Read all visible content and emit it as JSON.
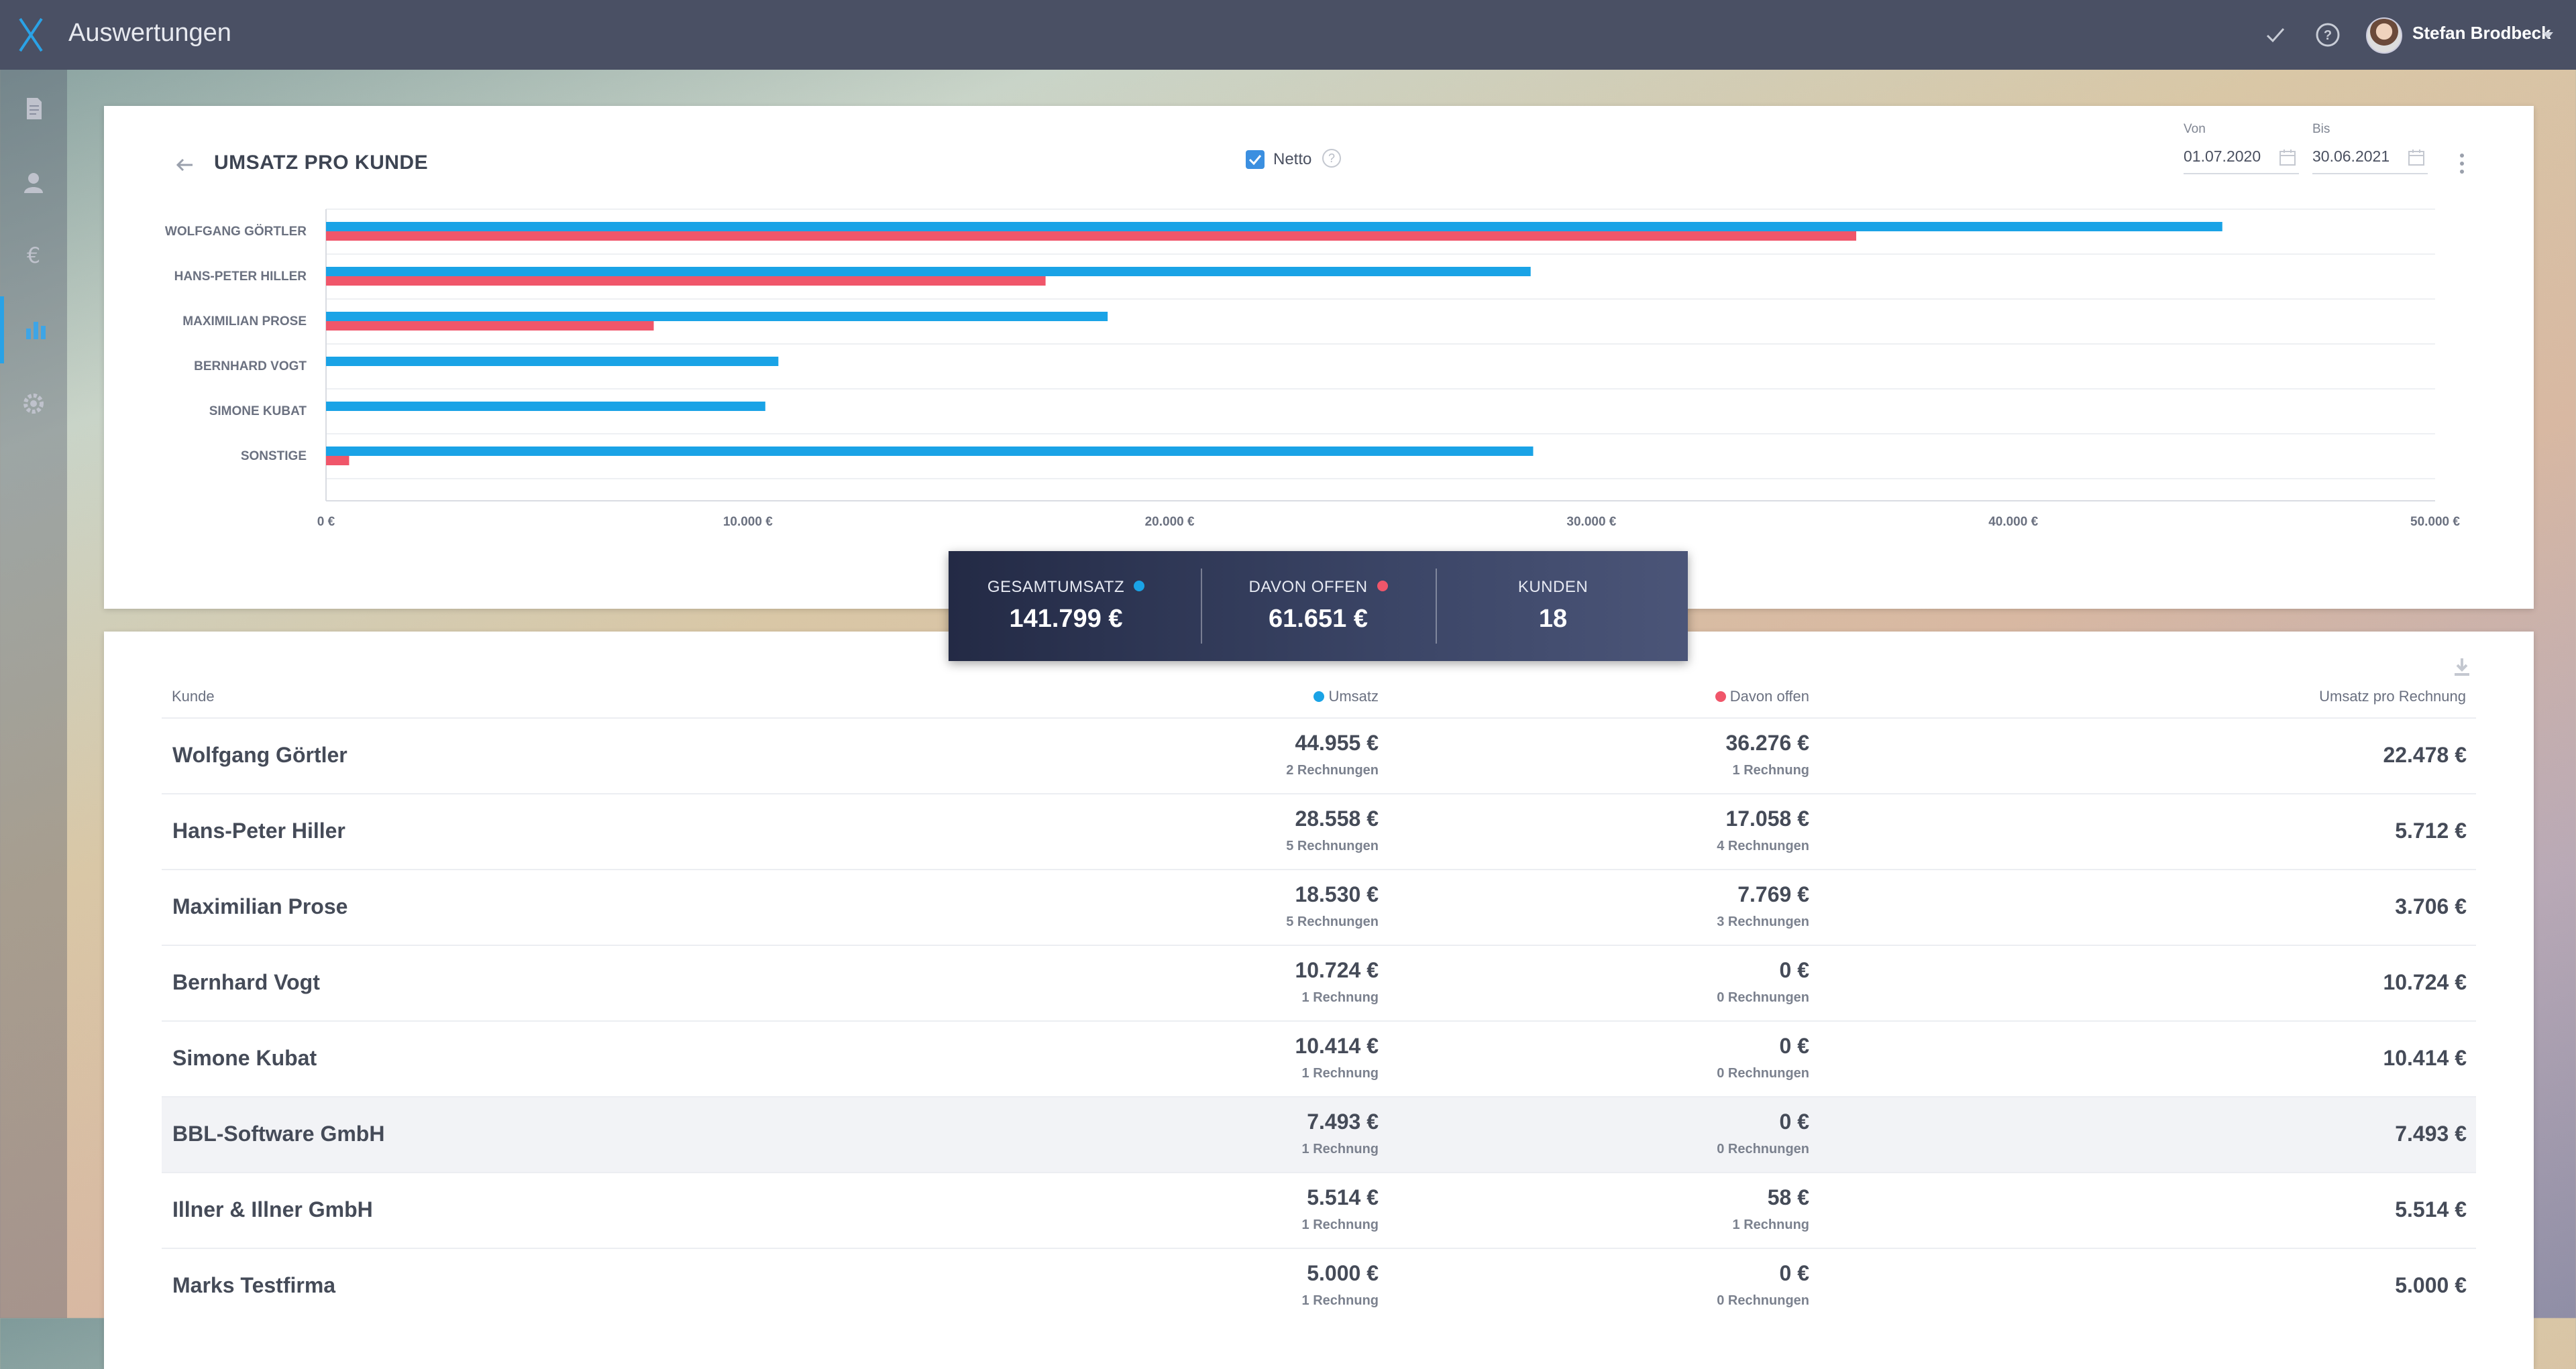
{
  "app": {
    "title": "Auswertungen",
    "user_name": "Stefan Brodbeck"
  },
  "sidebar": {
    "items": [
      {
        "icon": "document-icon"
      },
      {
        "icon": "contacts-icon"
      },
      {
        "icon": "euro-icon"
      },
      {
        "icon": "bar-chart-icon",
        "active": true
      },
      {
        "icon": "gear-icon"
      }
    ]
  },
  "chart_card": {
    "title": "UMSATZ PRO KUNDE",
    "netto_label": "Netto",
    "netto_checked": true,
    "from_label": "Von",
    "from_value": "01.07.2020",
    "to_label": "Bis",
    "to_value": "30.06.2021"
  },
  "colors": {
    "umsatz": "#1aa3e6",
    "offen": "#f0566a",
    "accent": "#2aa2e6"
  },
  "chart_data": {
    "type": "bar",
    "orientation": "horizontal",
    "categories": [
      "WOLFGANG GÖRTLER",
      "HANS-PETER HILLER",
      "MAXIMILIAN PROSE",
      "BERNHARD VOGT",
      "SIMONE KUBAT",
      "SONSTIGE"
    ],
    "series": [
      {
        "name": "Umsatz",
        "color": "#1aa3e6",
        "values": [
          44955,
          28558,
          18530,
          10724,
          10414,
          28618
        ]
      },
      {
        "name": "Davon offen",
        "color": "#f0566a",
        "values": [
          36276,
          17058,
          7769,
          0,
          0,
          548
        ]
      }
    ],
    "xlim": [
      0,
      50000
    ],
    "xticks": [
      "0 €",
      "10.000 €",
      "20.000 €",
      "30.000 €",
      "40.000 €",
      "50.000 €"
    ],
    "grid": true
  },
  "summary": [
    {
      "label": "GESAMTUMSATZ",
      "value": "141.799 €",
      "dot": "#1aa3e6"
    },
    {
      "label": "DAVON OFFEN",
      "value": "61.651 €",
      "dot": "#f0566a"
    },
    {
      "label": "KUNDEN",
      "value": "18"
    }
  ],
  "table": {
    "headers": {
      "kunde": "Kunde",
      "umsatz": "Umsatz",
      "offen": "Davon offen",
      "pro_rechnung": "Umsatz pro Rechnung"
    },
    "rows": [
      {
        "name": "Wolfgang Görtler",
        "umsatz": "44.955 €",
        "umsatz_sub": "2 Rechnungen",
        "offen": "36.276 €",
        "offen_sub": "1 Rechnung",
        "pro": "22.478 €"
      },
      {
        "name": "Hans-Peter Hiller",
        "umsatz": "28.558 €",
        "umsatz_sub": "5 Rechnungen",
        "offen": "17.058 €",
        "offen_sub": "4 Rechnungen",
        "pro": "5.712 €"
      },
      {
        "name": "Maximilian Prose",
        "umsatz": "18.530 €",
        "umsatz_sub": "5 Rechnungen",
        "offen": "7.769 €",
        "offen_sub": "3 Rechnungen",
        "pro": "3.706 €"
      },
      {
        "name": "Bernhard Vogt",
        "umsatz": "10.724 €",
        "umsatz_sub": "1 Rechnung",
        "offen": "0 €",
        "offen_sub": "0 Rechnungen",
        "pro": "10.724 €"
      },
      {
        "name": "Simone Kubat",
        "umsatz": "10.414 €",
        "umsatz_sub": "1 Rechnung",
        "offen": "0 €",
        "offen_sub": "0 Rechnungen",
        "pro": "10.414 €"
      },
      {
        "name": "BBL-Software GmbH",
        "umsatz": "7.493 €",
        "umsatz_sub": "1 Rechnung",
        "offen": "0 €",
        "offen_sub": "0 Rechnungen",
        "pro": "7.493 €",
        "highlight": true
      },
      {
        "name": "Illner & Illner GmbH",
        "umsatz": "5.514 €",
        "umsatz_sub": "1 Rechnung",
        "offen": "58 €",
        "offen_sub": "1 Rechnung",
        "pro": "5.514 €"
      },
      {
        "name": "Marks Testfirma",
        "umsatz": "5.000 €",
        "umsatz_sub": "1 Rechnung",
        "offen": "0 €",
        "offen_sub": "0 Rechnungen",
        "pro": "5.000 €"
      }
    ]
  }
}
